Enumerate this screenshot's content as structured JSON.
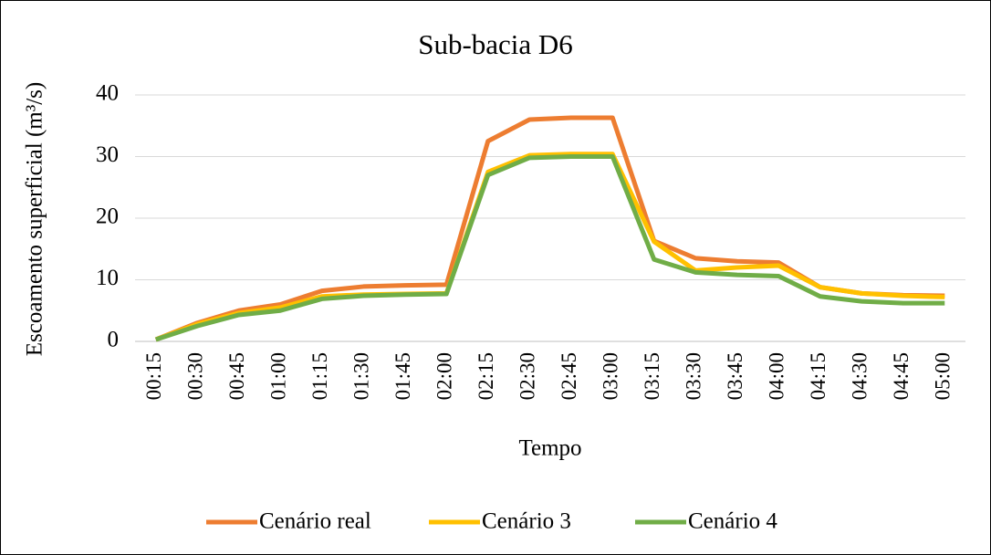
{
  "chart_data": {
    "type": "line",
    "title": "Sub-bacia D6",
    "x_label": "Tempo",
    "y_label": "Escoamento superficial (m³/s)",
    "categories": [
      "00:15",
      "00:30",
      "00:45",
      "01:00",
      "01:15",
      "01:30",
      "01:45",
      "02:00",
      "02:15",
      "02:30",
      "02:45",
      "03:00",
      "03:15",
      "03:30",
      "03:45",
      "04:00",
      "04:15",
      "04:30",
      "04:45",
      "05:00"
    ],
    "series": [
      {
        "name": "Cenário real",
        "color": "#ed7d31",
        "values": [
          0.3,
          3,
          5,
          6,
          8.2,
          8.9,
          9.1,
          9.2,
          32.5,
          36,
          36.3,
          36.3,
          16.3,
          13.5,
          13,
          12.8,
          8.8,
          7.8,
          7.5,
          7.4
        ]
      },
      {
        "name": "Cenário 3",
        "color": "#ffc000",
        "values": [
          0.3,
          2.8,
          4.6,
          5.5,
          7.3,
          7.6,
          7.7,
          7.8,
          27.5,
          30.2,
          30.4,
          30.4,
          16.2,
          11.5,
          12,
          12.3,
          8.8,
          7.8,
          7.4,
          7.2
        ]
      },
      {
        "name": "Cenário 4",
        "color": "#70ad47",
        "values": [
          0.3,
          2.5,
          4.3,
          5,
          6.9,
          7.4,
          7.6,
          7.7,
          27,
          29.8,
          30,
          30,
          13.3,
          11.2,
          10.8,
          10.6,
          7.3,
          6.5,
          6.2,
          6.2
        ]
      }
    ],
    "ylim": [
      0,
      40
    ],
    "yticks": [
      0,
      10,
      20,
      30,
      40
    ],
    "grid": true,
    "legend": "bottom"
  }
}
